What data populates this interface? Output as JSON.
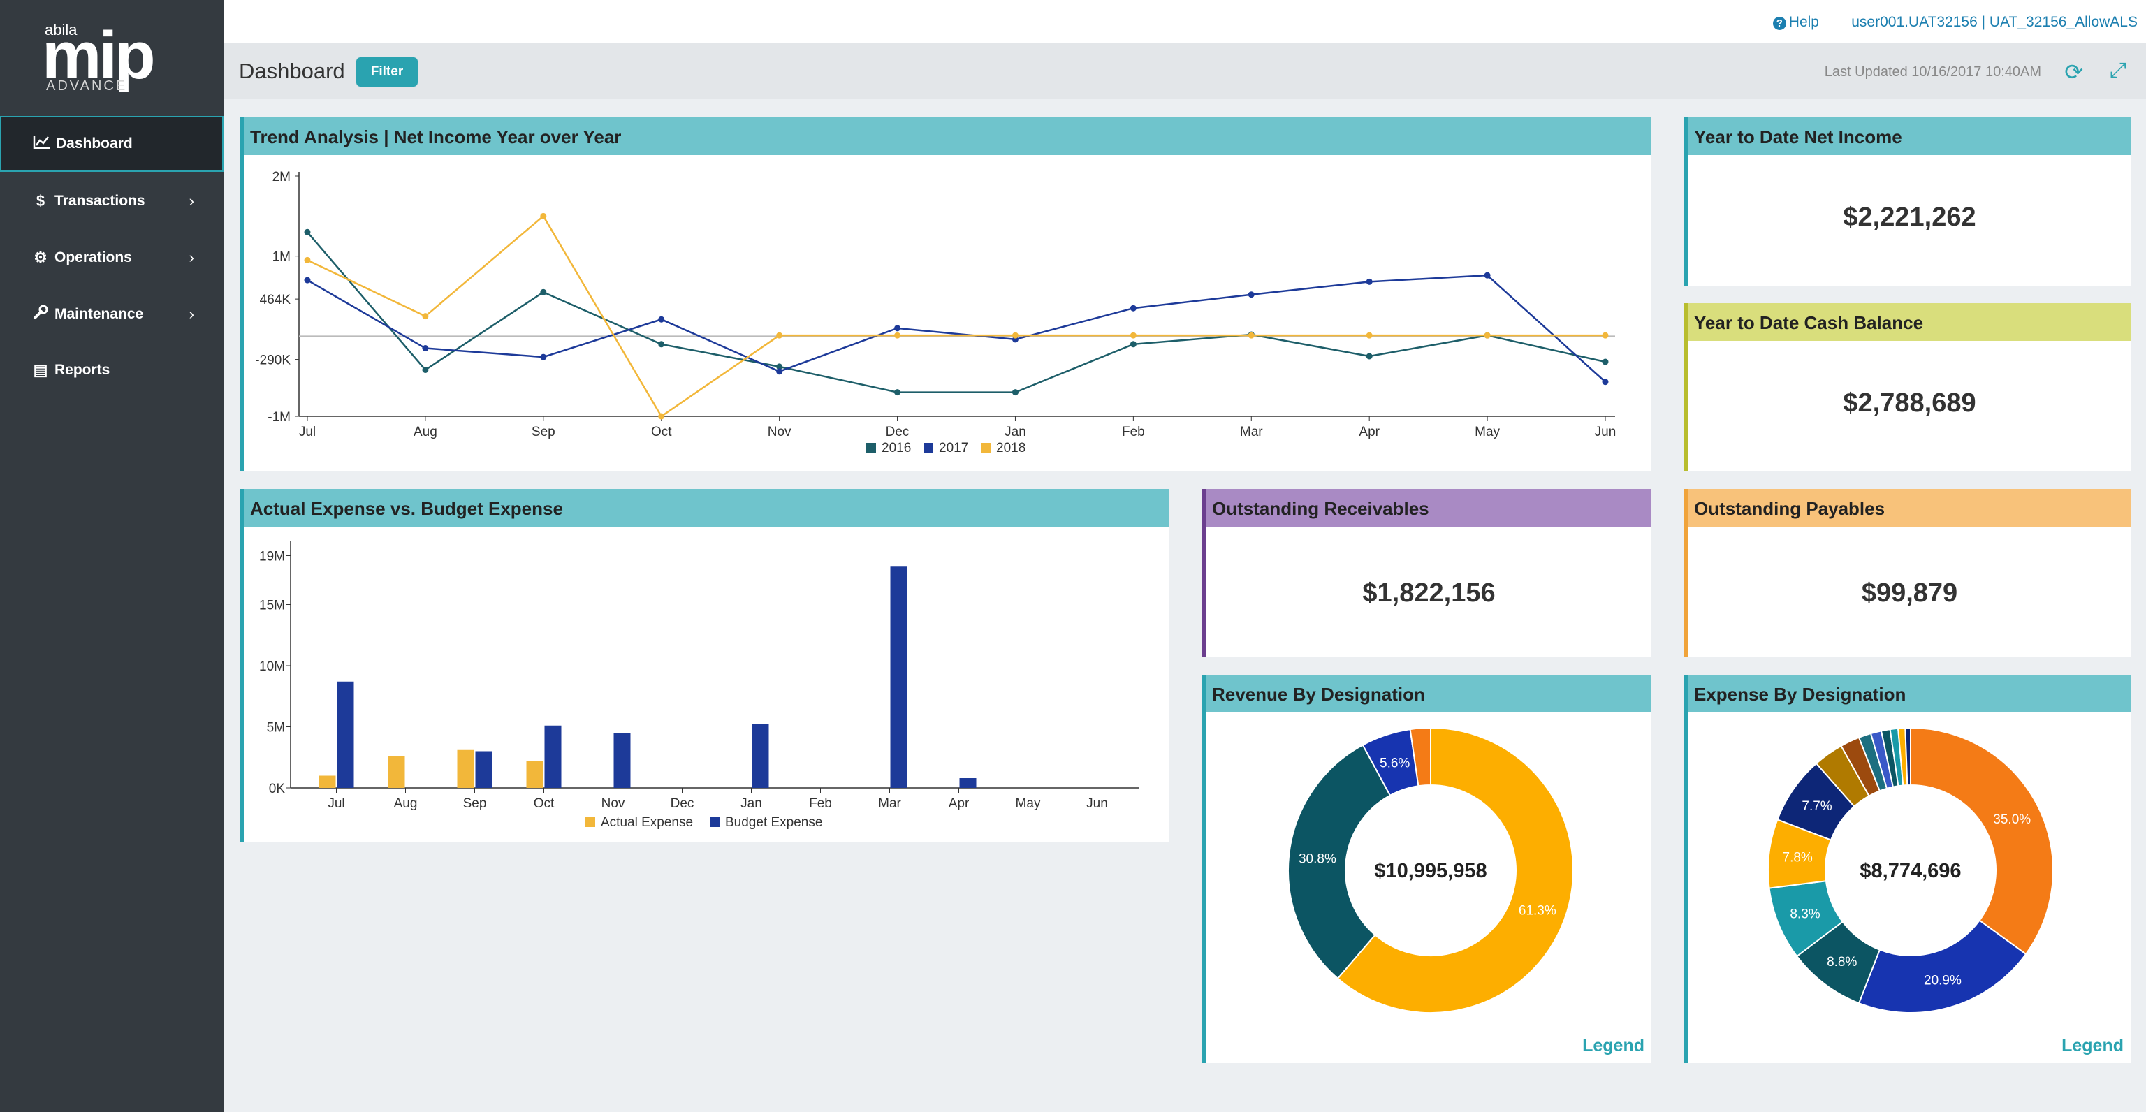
{
  "brand": {
    "small": "abila",
    "name": "mip",
    "edition": "ADVANCE"
  },
  "sidebar": {
    "items": [
      {
        "label": "Dashboard",
        "icon": "line-chart-icon",
        "glyph": "📈",
        "chevron": ""
      },
      {
        "label": "Transactions",
        "icon": "dollar-icon",
        "glyph": "$",
        "chevron": "›"
      },
      {
        "label": "Operations",
        "icon": "gears-icon",
        "glyph": "⚙",
        "chevron": "›"
      },
      {
        "label": "Maintenance",
        "icon": "wrench-icon",
        "glyph": "🔧",
        "chevron": "›"
      },
      {
        "label": "Reports",
        "icon": "document-icon",
        "glyph": "▤",
        "chevron": ""
      }
    ]
  },
  "topbar": {
    "help_label": "Help",
    "user": "user001.UAT32156 | UAT_32156_AllowALS"
  },
  "subbar": {
    "title": "Dashboard",
    "filter_label": "Filter",
    "last_updated": "Last Updated 10/16/2017 10:40AM"
  },
  "colors": {
    "teal": "#2aa3b0",
    "header_teal": "#6fc4cc",
    "series_2016": "#1d5e69",
    "series_2017": "#1d3a99",
    "series_2018": "#f2b73a",
    "receivables": "#6b3e8e",
    "receivables_header": "#a98ac4",
    "payables": "#f0a33a",
    "payables_header": "#f8c27a",
    "cash": "#b8bd2e",
    "cash_header": "#d9de7c"
  },
  "panels": {
    "trend_title": "Trend Analysis | Net Income Year over Year",
    "expense_title": "Actual Expense vs. Budget Expense",
    "ytd_income_title": "Year to Date Net Income",
    "ytd_income_value": "$2,221,262",
    "ytd_cash_title": "Year to Date Cash Balance",
    "ytd_cash_value": "$2,788,689",
    "receivables_title": "Outstanding Receivables",
    "receivables_value": "$1,822,156",
    "payables_title": "Outstanding Payables",
    "payables_value": "$99,879",
    "revenue_title": "Revenue By Designation",
    "revenue_total": "$10,995,958",
    "expense_desig_title": "Expense By Designation",
    "expense_total": "$8,774,696",
    "legend_label": "Legend"
  },
  "chart_data": [
    {
      "type": "line",
      "title": "Trend Analysis | Net Income Year over Year",
      "categories": [
        "Jul",
        "Aug",
        "Sep",
        "Oct",
        "Nov",
        "Dec",
        "Jan",
        "Feb",
        "Mar",
        "Apr",
        "May",
        "Jun"
      ],
      "yticks": [
        "2M",
        "1M",
        "464K",
        "-290K",
        "-1M"
      ],
      "ytick_values": [
        2000000,
        1000000,
        464000,
        -290000,
        -1000000
      ],
      "ylim": [
        -1000000,
        2000000
      ],
      "series": [
        {
          "name": "2016",
          "values": [
            1300000,
            -420000,
            550000,
            -100000,
            -380000,
            -700000,
            -700000,
            -100000,
            20000,
            -250000,
            10000,
            -320000
          ]
        },
        {
          "name": "2017",
          "values": [
            700000,
            -150000,
            -260000,
            210000,
            -440000,
            100000,
            -40000,
            350000,
            520000,
            680000,
            760000,
            -570000
          ]
        },
        {
          "name": "2018",
          "values": [
            950000,
            250000,
            1500000,
            -1000000,
            10000,
            10000,
            10000,
            10000,
            10000,
            10000,
            10000,
            10000
          ]
        }
      ],
      "legend": "bottom"
    },
    {
      "type": "bar",
      "title": "Actual Expense vs. Budget Expense",
      "categories": [
        "Jul",
        "Aug",
        "Sep",
        "Oct",
        "Nov",
        "Dec",
        "Jan",
        "Feb",
        "Mar",
        "Apr",
        "May",
        "Jun"
      ],
      "yticks": [
        "19M",
        "15M",
        "10M",
        "5M",
        "0K"
      ],
      "ytick_values": [
        19000000,
        15000000,
        10000000,
        5000000,
        0
      ],
      "ylim": [
        0,
        20000000
      ],
      "series": [
        {
          "name": "Actual Expense",
          "values": [
            1000000,
            2600000,
            3100000,
            2200000,
            0,
            0,
            0,
            0,
            0,
            0,
            0,
            0
          ]
        },
        {
          "name": "Budget Expense",
          "values": [
            8700000,
            0,
            3000000,
            5100000,
            4500000,
            0,
            5200000,
            0,
            18100000,
            800000,
            0,
            0
          ]
        }
      ],
      "legend": "bottom"
    },
    {
      "type": "pie",
      "title": "Revenue By Designation",
      "center_label": "$10,995,958",
      "slices": [
        {
          "value": 61.3,
          "label": "61.3%",
          "color": "#fdae00"
        },
        {
          "value": 30.8,
          "label": "30.8%",
          "color": "#0c5563"
        },
        {
          "value": 5.6,
          "label": "5.6%",
          "color": "#1734b0"
        },
        {
          "value": 2.3,
          "label": "",
          "color": "#f47b16"
        }
      ]
    },
    {
      "type": "pie",
      "title": "Expense By Designation",
      "center_label": "$8,774,696",
      "slices": [
        {
          "value": 35.0,
          "label": "35.0%",
          "color": "#f47b16"
        },
        {
          "value": 20.9,
          "label": "20.9%",
          "color": "#1734b0"
        },
        {
          "value": 8.8,
          "label": "8.8%",
          "color": "#0c5563"
        },
        {
          "value": 8.3,
          "label": "8.3%",
          "color": "#1a9aa8"
        },
        {
          "value": 7.8,
          "label": "7.8%",
          "color": "#fdae00"
        },
        {
          "value": 7.7,
          "label": "7.7%",
          "color": "#0d2677"
        },
        {
          "value": 3.4,
          "label": "",
          "color": "#b07a00"
        },
        {
          "value": 2.2,
          "label": "",
          "color": "#9c4a0e"
        },
        {
          "value": 1.4,
          "label": "",
          "color": "#1d6f80"
        },
        {
          "value": 1.2,
          "label": "",
          "color": "#3a59c8"
        },
        {
          "value": 1.0,
          "label": "",
          "color": "#0c5563"
        },
        {
          "value": 0.9,
          "label": "",
          "color": "#1a9aa8"
        },
        {
          "value": 0.8,
          "label": "",
          "color": "#fdae00"
        },
        {
          "value": 0.6,
          "label": "",
          "color": "#0d2677"
        }
      ]
    }
  ]
}
